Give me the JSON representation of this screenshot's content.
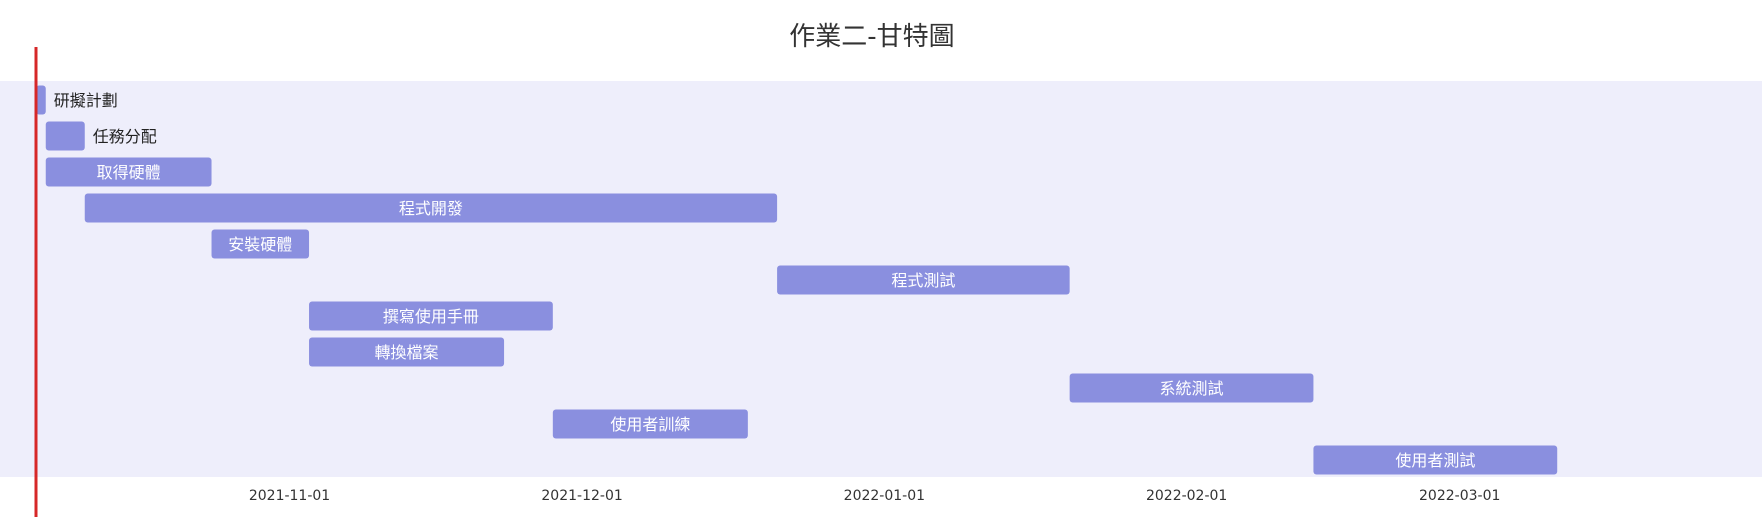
{
  "chart_data": {
    "type": "gantt",
    "title": "作業二-甘特圖",
    "today_marker": "2021-10-06",
    "x_ticks": [
      "2021-11-01",
      "2021-12-01",
      "2022-01-01",
      "2022-02-01",
      "2022-03-01"
    ],
    "xlim": [
      "2021-10-06",
      "2022-04-01"
    ],
    "tasks": [
      {
        "name": "研擬計劃",
        "start": "2021-10-06",
        "end": "2021-10-07"
      },
      {
        "name": "任務分配",
        "start": "2021-10-07",
        "end": "2021-10-11"
      },
      {
        "name": "取得硬體",
        "start": "2021-10-07",
        "end": "2021-10-24"
      },
      {
        "name": "程式開發",
        "start": "2021-10-11",
        "end": "2021-12-21"
      },
      {
        "name": "安裝硬體",
        "start": "2021-10-24",
        "end": "2021-11-03"
      },
      {
        "name": "程式測試",
        "start": "2021-12-21",
        "end": "2022-01-20"
      },
      {
        "name": "撰寫使用手冊",
        "start": "2021-11-03",
        "end": "2021-11-28"
      },
      {
        "name": "轉換檔案",
        "start": "2021-11-03",
        "end": "2021-11-23"
      },
      {
        "name": "系統測試",
        "start": "2022-01-20",
        "end": "2022-02-14"
      },
      {
        "name": "使用者訓練",
        "start": "2021-11-28",
        "end": "2021-12-18"
      },
      {
        "name": "使用者測試",
        "start": "2022-02-14",
        "end": "2022-03-11"
      }
    ],
    "colors": {
      "bar": "#8a8fdf",
      "background": "#eeeefb",
      "today_line": "#d62728",
      "label_inside": "#ffffff",
      "label_outside": "#222222"
    }
  }
}
